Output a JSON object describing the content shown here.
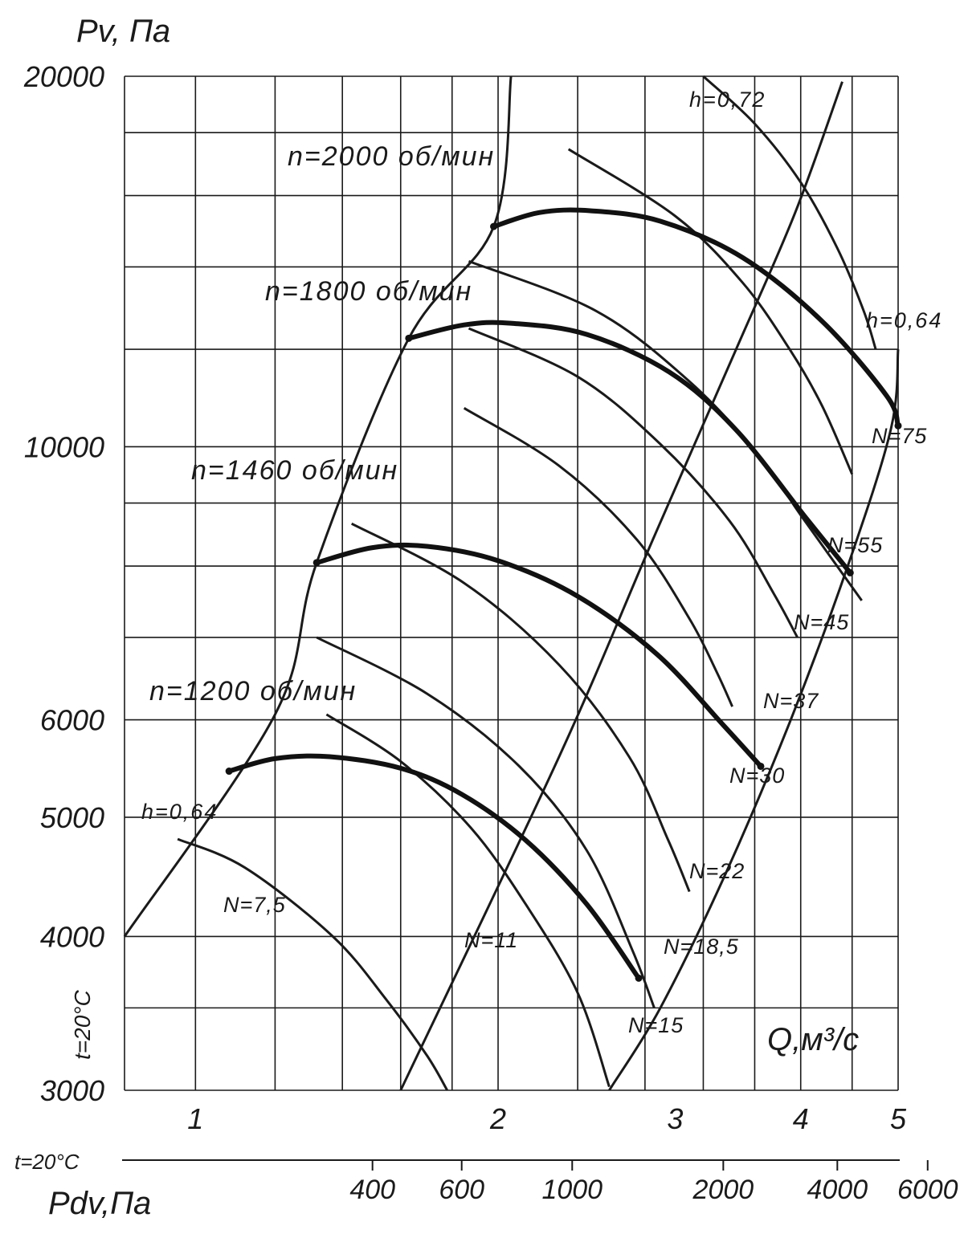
{
  "chart_data": {
    "type": "line",
    "y_title": "Pv, Па",
    "x_title": "Q,м³/с",
    "x2_title": "Pdv,Па",
    "temp_label_side": "t=20°C",
    "temp_label_bottom": "t=20°C",
    "y_scale": "log",
    "ylim": [
      3000,
      20000
    ],
    "y_ticks": [
      {
        "v": 20000,
        "label": "20000"
      },
      {
        "v": 10000,
        "label": "10000"
      },
      {
        "v": 6000,
        "label": "6000"
      },
      {
        "v": 5000,
        "label": "5000"
      },
      {
        "v": 4000,
        "label": "4000"
      },
      {
        "v": 3000,
        "label": "3000"
      }
    ],
    "y_grid": [
      3000,
      3500,
      4000,
      5000,
      6000,
      7000,
      8000,
      9000,
      10000,
      12000,
      14000,
      16000,
      18000,
      20000
    ],
    "x_scale": "log",
    "xlim": [
      0.85,
      5
    ],
    "x_ticks": [
      {
        "v": 1,
        "label": "1"
      },
      {
        "v": 2,
        "label": "2"
      },
      {
        "v": 3,
        "label": "3"
      },
      {
        "v": 4,
        "label": "4"
      },
      {
        "v": 5,
        "label": "5"
      }
    ],
    "x_grid": [
      0.85,
      1,
      1.2,
      1.4,
      1.6,
      1.8,
      2,
      2.4,
      2.8,
      3.2,
      3.6,
      4,
      4.5,
      5
    ],
    "x2_ticks": [
      {
        "q": 1.5,
        "label": "400"
      },
      {
        "q": 1.84,
        "label": "600"
      },
      {
        "q": 2.37,
        "label": "1000"
      },
      {
        "q": 3.35,
        "label": "2000"
      },
      {
        "q": 4.35,
        "label": "4000"
      },
      {
        "q": 5.35,
        "label": "6000"
      }
    ],
    "grid": true,
    "speed_series": [
      {
        "name": "n=1200 об/мин",
        "points": [
          [
            1.08,
            5450
          ],
          [
            1.2,
            5580
          ],
          [
            1.36,
            5600
          ],
          [
            1.6,
            5480
          ],
          [
            1.84,
            5220
          ],
          [
            2.13,
            4790
          ],
          [
            2.45,
            4250
          ],
          [
            2.76,
            3700
          ]
        ]
      },
      {
        "name": "n=1460 об/мин",
        "points": [
          [
            1.32,
            8050
          ],
          [
            1.5,
            8280
          ],
          [
            1.7,
            8300
          ],
          [
            2.0,
            8080
          ],
          [
            2.4,
            7560
          ],
          [
            2.88,
            6780
          ],
          [
            3.35,
            5940
          ],
          [
            3.65,
            5500
          ]
        ]
      },
      {
        "name": "n=1800 об/мин",
        "points": [
          [
            1.63,
            12250
          ],
          [
            1.85,
            12560
          ],
          [
            2.06,
            12600
          ],
          [
            2.45,
            12340
          ],
          [
            2.96,
            11500
          ],
          [
            3.45,
            10320
          ],
          [
            4.05,
            8750
          ],
          [
            4.48,
            7900
          ]
        ]
      },
      {
        "name": "n=2000 об/мин",
        "points": [
          [
            1.98,
            15100
          ],
          [
            2.2,
            15500
          ],
          [
            2.47,
            15550
          ],
          [
            2.9,
            15250
          ],
          [
            3.5,
            14250
          ],
          [
            4.2,
            12650
          ],
          [
            4.87,
            11000
          ],
          [
            5.0,
            10400
          ]
        ]
      }
    ],
    "power_series": [
      {
        "name": "N=7,5",
        "points": [
          [
            0.96,
            4800
          ],
          [
            1.12,
            4550
          ],
          [
            1.37,
            4000
          ],
          [
            1.55,
            3550
          ],
          [
            1.7,
            3200
          ],
          [
            1.78,
            3000
          ]
        ]
      },
      {
        "name": "N=11",
        "points": [
          [
            1.35,
            6060
          ],
          [
            1.6,
            5550
          ],
          [
            1.88,
            4900
          ],
          [
            2.13,
            4250
          ],
          [
            2.4,
            3600
          ],
          [
            2.58,
            3020
          ]
        ]
      },
      {
        "name": "N=15",
        "points": [
          [
            1.32,
            7000
          ],
          [
            1.7,
            6300
          ],
          [
            2.1,
            5500
          ],
          [
            2.45,
            4700
          ],
          [
            2.72,
            3900
          ],
          [
            2.86,
            3500
          ]
        ]
      },
      {
        "name": "N=18,5",
        "points": [
          [
            1.43,
            8660
          ],
          [
            1.85,
            7750
          ],
          [
            2.3,
            6650
          ],
          [
            2.7,
            5600
          ],
          [
            2.95,
            4800
          ],
          [
            3.1,
            4350
          ]
        ]
      },
      {
        "name": "N=22",
        "points": [
          [
            1.85,
            10750
          ],
          [
            2.3,
            9650
          ],
          [
            2.75,
            8400
          ],
          [
            3.1,
            7250
          ],
          [
            3.3,
            6560
          ],
          [
            3.42,
            6150
          ]
        ]
      },
      {
        "name": "N=30",
        "points": [
          [
            1.87,
            12480
          ],
          [
            2.4,
            11400
          ],
          [
            2.9,
            10050
          ],
          [
            3.4,
            8700
          ],
          [
            3.76,
            7600
          ],
          [
            3.97,
            7000
          ]
        ]
      },
      {
        "name": "N=37",
        "points": [
          [
            1.87,
            14150
          ],
          [
            2.5,
            12900
          ],
          [
            3.1,
            11300
          ],
          [
            3.65,
            9800
          ],
          [
            4.0,
            8800
          ],
          [
            4.6,
            7500
          ]
        ]
      },
      {
        "name": "N=45",
        "points": [
          [
            2.35,
            17450
          ],
          [
            3.0,
            15400
          ],
          [
            3.5,
            13600
          ],
          [
            3.9,
            12000
          ],
          [
            4.2,
            10800
          ],
          [
            4.5,
            9500
          ]
        ]
      },
      {
        "name": "N=55",
        "points": [
          [
            3.2,
            20000
          ],
          [
            3.6,
            18300
          ],
          [
            4.0,
            16400
          ],
          [
            4.35,
            14500
          ],
          [
            4.62,
            12900
          ],
          [
            4.75,
            12000
          ]
        ]
      }
    ],
    "efficiency_lines": [
      {
        "name": "h=0,64",
        "points": [
          [
            0.85,
            4000
          ],
          [
            1.2,
            6060
          ],
          [
            1.32,
            8050
          ],
          [
            1.63,
            12250
          ],
          [
            1.98,
            15100
          ],
          [
            2.06,
            20000
          ]
        ]
      },
      {
        "name": "h=0,64",
        "points": [
          [
            2.58,
            3000
          ],
          [
            2.9,
            3500
          ],
          [
            3.36,
            4480
          ],
          [
            3.9,
            5970
          ],
          [
            4.46,
            8020
          ],
          [
            4.92,
            10350
          ],
          [
            5.0,
            12000
          ]
        ]
      },
      {
        "name": "h=0,72",
        "points": [
          [
            1.6,
            3000
          ],
          [
            2.3,
            5600
          ],
          [
            2.85,
            8400
          ],
          [
            3.45,
            12000
          ],
          [
            3.95,
            15500
          ],
          [
            4.4,
            19800
          ]
        ]
      }
    ],
    "annotations": [
      {
        "text": "N=75",
        "near": "right end of n=2000 curve"
      },
      {
        "text": "N=55"
      },
      {
        "text": "N=45"
      },
      {
        "text": "N=37"
      },
      {
        "text": "N=30"
      },
      {
        "text": "N=22"
      },
      {
        "text": "N=18,5"
      },
      {
        "text": "N=15"
      },
      {
        "text": "N=11"
      },
      {
        "text": "N=7,5"
      },
      {
        "text": "h=0,64"
      },
      {
        "text": "h=0,72"
      }
    ]
  }
}
